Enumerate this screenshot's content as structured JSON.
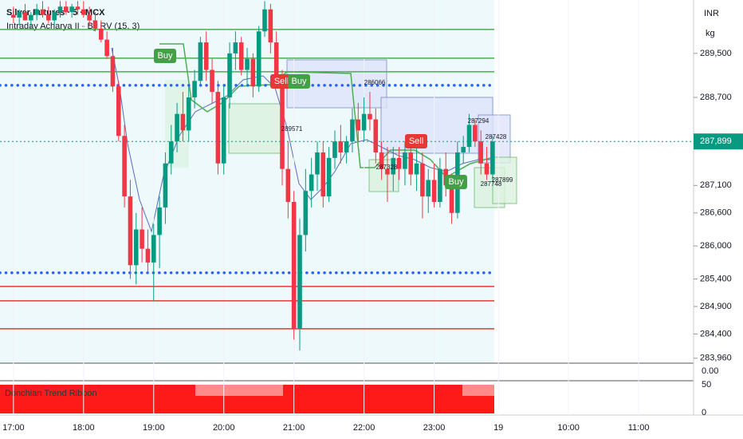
{
  "chart_data": {
    "type": "candlestick",
    "title": "Silver Futures · 5 · MCX",
    "subtitle": "Intraday Acharya II - By RV (15, 3)",
    "currency": "INR",
    "unit": "kg",
    "up_color": "#089981",
    "down_color": "#f23645",
    "ylim": [
      283870,
      290470
    ],
    "yticks": [
      {
        "value": 289500,
        "label": "289,500"
      },
      {
        "value": 288700,
        "label": "288,700"
      },
      {
        "value": 287100,
        "label": "287,100"
      },
      {
        "value": 286600,
        "label": "286,600"
      },
      {
        "value": 286000,
        "label": "286,000"
      },
      {
        "value": 285400,
        "label": "285,400"
      },
      {
        "value": 284900,
        "label": "284,900"
      },
      {
        "value": 284400,
        "label": "284,400"
      },
      {
        "value": 283960,
        "label": "283,960"
      }
    ],
    "last_price": {
      "value": 287899,
      "label": "287,899"
    },
    "xlim": [
      -2.3,
      116.4
    ],
    "xticks": [
      {
        "value": 0,
        "label": "17:00"
      },
      {
        "value": 12,
        "label": "18:00"
      },
      {
        "value": 24,
        "label": "19:00"
      },
      {
        "value": 36,
        "label": "20:00"
      },
      {
        "value": 48,
        "label": "21:00"
      },
      {
        "value": 60,
        "label": "22:00"
      },
      {
        "value": 72,
        "label": "23:00"
      },
      {
        "value": 83,
        "label": "19"
      },
      {
        "value": 95,
        "label": "10:00"
      },
      {
        "value": 107,
        "label": "11:00"
      }
    ],
    "levels": [
      {
        "value": 289935,
        "color": "#4caf50",
        "style": "solid"
      },
      {
        "value": 289413,
        "color": "#4caf50",
        "style": "solid"
      },
      {
        "value": 289166,
        "color": "#4caf50",
        "style": "solid"
      },
      {
        "value": 288920,
        "color": "#2962ff",
        "style": "dotted"
      },
      {
        "value": 285512,
        "color": "#2962ff",
        "style": "dotted"
      },
      {
        "value": 285265,
        "color": "#e53935",
        "style": "solid"
      },
      {
        "value": 285004,
        "color": "#e53935",
        "style": "solid"
      },
      {
        "value": 284496,
        "color": "#e53935",
        "style": "solid"
      }
    ],
    "signals": [
      "Buy",
      "Sell",
      "Buy",
      "Sell",
      "Buy"
    ],
    "box_labels": [
      "286066",
      "289571",
      "287294",
      "287428",
      "287328",
      "287748",
      "287899"
    ],
    "candles": [
      [
        290200,
        290350,
        290050,
        290150
      ],
      [
        290150,
        290300,
        290000,
        290250
      ],
      [
        290250,
        290400,
        290100,
        290100
      ],
      [
        290100,
        290250,
        289950,
        290200
      ],
      [
        290200,
        290400,
        290100,
        290300
      ],
      [
        290300,
        290450,
        290150,
        290200
      ],
      [
        290200,
        290350,
        290050,
        290100
      ],
      [
        290100,
        290300,
        290000,
        290250
      ],
      [
        290250,
        290450,
        290150,
        290350
      ],
      [
        290350,
        290450,
        290200,
        290250
      ],
      [
        290250,
        290400,
        290150,
        290350
      ],
      [
        290350,
        290450,
        290200,
        290300
      ],
      [
        290300,
        290450,
        290150,
        290200
      ],
      [
        290200,
        290350,
        290000,
        290100
      ],
      [
        290100,
        290250,
        289900,
        289950
      ],
      [
        289950,
        290100,
        289700,
        289750
      ],
      [
        289750,
        289900,
        289400,
        289450
      ],
      [
        289450,
        289600,
        288800,
        288900
      ],
      [
        288900,
        289000,
        287900,
        288000
      ],
      [
        288000,
        288200,
        286700,
        286900
      ],
      [
        286900,
        287200,
        285400,
        285650
      ],
      [
        285650,
        286600,
        285300,
        286300
      ],
      [
        286300,
        286700,
        285700,
        285950
      ],
      [
        285950,
        286300,
        285500,
        285700
      ],
      [
        285700,
        286400,
        285000,
        286200
      ],
      [
        286200,
        286900,
        285600,
        286700
      ],
      [
        286700,
        287700,
        286400,
        287500
      ],
      [
        287500,
        288200,
        287300,
        287900
      ],
      [
        287900,
        288600,
        287700,
        288400
      ],
      [
        288400,
        288800,
        287900,
        288100
      ],
      [
        288100,
        288900,
        287900,
        288700
      ],
      [
        288700,
        289200,
        288500,
        289000
      ],
      [
        289000,
        289800,
        288900,
        289700
      ],
      [
        289700,
        289900,
        289000,
        289200
      ],
      [
        289200,
        289400,
        288600,
        288800
      ],
      [
        288800,
        289000,
        287300,
        287500
      ],
      [
        287500,
        288900,
        287300,
        288700
      ],
      [
        288700,
        289700,
        288500,
        289500
      ],
      [
        289500,
        289900,
        289200,
        289700
      ],
      [
        289700,
        289800,
        289100,
        289200
      ],
      [
        289200,
        289600,
        288900,
        289400
      ],
      [
        289400,
        289500,
        288700,
        288900
      ],
      [
        288900,
        290000,
        288800,
        289900
      ],
      [
        289900,
        290450,
        289800,
        290300
      ],
      [
        290300,
        290400,
        289500,
        289700
      ],
      [
        289700,
        289900,
        289000,
        289100
      ],
      [
        289100,
        289200,
        287100,
        287400
      ],
      [
        287400,
        287900,
        286500,
        286800
      ],
      [
        286800,
        287000,
        284300,
        284500
      ],
      [
        284500,
        286500,
        284100,
        286200
      ],
      [
        286200,
        287400,
        285900,
        287000
      ],
      [
        287000,
        287600,
        286700,
        287300
      ],
      [
        287300,
        287900,
        287000,
        287700
      ],
      [
        287700,
        287900,
        286700,
        286900
      ],
      [
        286900,
        287800,
        286800,
        287600
      ],
      [
        287600,
        288100,
        287400,
        287900
      ],
      [
        287900,
        288200,
        287500,
        287700
      ],
      [
        287700,
        288000,
        287500,
        287900
      ],
      [
        287900,
        288500,
        287700,
        288300
      ],
      [
        288300,
        288600,
        287900,
        288100
      ],
      [
        288100,
        288700,
        287900,
        288400
      ],
      [
        288400,
        288800,
        288100,
        288300
      ],
      [
        288300,
        288500,
        287500,
        287700
      ],
      [
        287700,
        287900,
        287200,
        287400
      ],
      [
        287400,
        287800,
        286800,
        287300
      ],
      [
        287300,
        287800,
        287000,
        287600
      ],
      [
        287600,
        287800,
        287200,
        287400
      ],
      [
        287400,
        287900,
        287100,
        287700
      ],
      [
        287700,
        288000,
        287100,
        287300
      ],
      [
        287300,
        287800,
        287000,
        287500
      ],
      [
        287500,
        287700,
        286500,
        286900
      ],
      [
        286900,
        287400,
        286600,
        287200
      ],
      [
        287200,
        287500,
        286700,
        286800
      ],
      [
        286800,
        287600,
        286700,
        287400
      ],
      [
        287400,
        287700,
        286900,
        287100
      ],
      [
        287100,
        287300,
        286400,
        286600
      ],
      [
        286600,
        287900,
        286500,
        287700
      ],
      [
        287700,
        288000,
        287500,
        287800
      ],
      [
        287800,
        288400,
        287700,
        288200
      ],
      [
        288200,
        288300,
        287800,
        287900
      ],
      [
        287900,
        288100,
        287300,
        287500
      ],
      [
        287500,
        287800,
        287200,
        287300
      ],
      [
        287300,
        288000,
        287200,
        287899
      ]
    ],
    "indicator": {
      "title": "Donchian Trend Ribbon",
      "yticks": [
        50,
        0
      ]
    },
    "volume_tick": {
      "value": 0,
      "label": "0.00"
    }
  }
}
